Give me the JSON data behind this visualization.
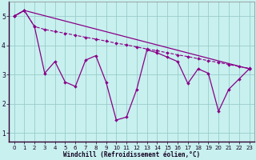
{
  "xlabel": "Windchill (Refroidissement éolien,°C)",
  "xlim_min": -0.5,
  "xlim_max": 23.5,
  "ylim_min": 0.7,
  "ylim_max": 5.5,
  "yticks": [
    1,
    2,
    3,
    4,
    5
  ],
  "xticks": [
    0,
    1,
    2,
    3,
    4,
    5,
    6,
    7,
    8,
    9,
    10,
    11,
    12,
    13,
    14,
    15,
    16,
    17,
    18,
    19,
    20,
    21,
    22,
    23
  ],
  "bg_color": "#c8f0ee",
  "grid_color": "#99cccc",
  "line_color": "#880088",
  "line1_x": [
    0,
    1,
    2,
    3,
    4,
    5,
    6,
    7,
    8,
    9,
    10,
    11,
    12,
    13,
    14,
    15,
    16,
    17,
    18,
    19,
    20,
    21,
    22,
    23
  ],
  "line1_y": [
    5.0,
    5.2,
    4.65,
    3.05,
    3.45,
    2.75,
    2.6,
    3.5,
    3.65,
    2.75,
    1.45,
    1.55,
    2.5,
    3.85,
    3.75,
    3.6,
    3.45,
    2.7,
    3.2,
    3.05,
    1.75,
    2.5,
    2.85,
    3.2
  ],
  "line2_x": [
    0,
    1,
    2,
    3,
    4,
    5,
    6,
    7,
    8,
    9,
    10,
    11,
    12,
    13,
    14,
    15,
    16,
    17,
    18,
    19,
    20,
    21,
    22,
    23
  ],
  "line2_y": [
    5.0,
    5.2,
    4.65,
    4.55,
    4.48,
    4.42,
    4.35,
    4.28,
    4.22,
    4.15,
    4.08,
    4.02,
    3.95,
    3.88,
    3.82,
    3.75,
    3.68,
    3.62,
    3.55,
    3.48,
    3.42,
    3.35,
    3.28,
    3.22
  ],
  "line3_x": [
    0,
    1,
    23
  ],
  "line3_y": [
    5.0,
    5.2,
    3.2
  ],
  "tick_fontsize": 5,
  "xlabel_fontsize": 5.5
}
